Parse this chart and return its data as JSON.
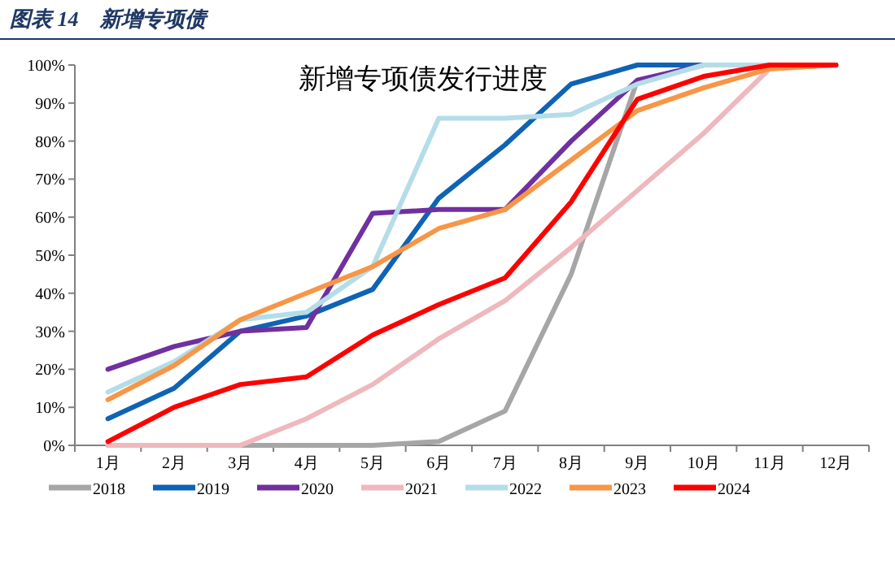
{
  "chart_data": {
    "type": "line",
    "title": "图表 14　新增专项债",
    "subtitle": "新增专项债发行进度",
    "categories": [
      "1月",
      "2月",
      "3月",
      "4月",
      "5月",
      "6月",
      "7月",
      "8月",
      "9月",
      "10月",
      "11月",
      "12月"
    ],
    "ylim": [
      0,
      100
    ],
    "yticks": [
      {
        "value": 0,
        "label": "0%"
      },
      {
        "value": 10,
        "label": "10%"
      },
      {
        "value": 20,
        "label": "20%"
      },
      {
        "value": 30,
        "label": "30%"
      },
      {
        "value": 40,
        "label": "40%"
      },
      {
        "value": 50,
        "label": "50%"
      },
      {
        "value": 60,
        "label": "60%"
      },
      {
        "value": 70,
        "label": "70%"
      },
      {
        "value": 80,
        "label": "80%"
      },
      {
        "value": 90,
        "label": "90%"
      },
      {
        "value": 100,
        "label": "100%"
      }
    ],
    "legend": "bottom",
    "grid": false,
    "marker": "none",
    "line_style": "solid",
    "series": [
      {
        "name": "2018",
        "color": "#a6a6a6",
        "values": [
          0,
          0,
          0,
          0,
          0,
          1,
          9,
          45,
          96,
          100,
          100,
          100
        ]
      },
      {
        "name": "2019",
        "color": "#0e63b4",
        "values": [
          7,
          15,
          30,
          34,
          41,
          65,
          79,
          95,
          100,
          100,
          100,
          100
        ]
      },
      {
        "name": "2020",
        "color": "#7030a0",
        "values": [
          20,
          26,
          30,
          31,
          61,
          62,
          62,
          80,
          96,
          100,
          100,
          100
        ]
      },
      {
        "name": "2021",
        "color": "#efb8bd",
        "values": [
          0,
          0,
          0,
          7,
          16,
          28,
          38,
          52,
          67,
          82,
          99,
          100
        ]
      },
      {
        "name": "2022",
        "color": "#b4dde8",
        "values": [
          14,
          22,
          33,
          35,
          47,
          86,
          86,
          87,
          95,
          100,
          100,
          100
        ]
      },
      {
        "name": "2023",
        "color": "#f79646",
        "values": [
          12,
          21,
          33,
          40,
          47,
          57,
          62,
          75,
          88,
          94,
          99,
          100
        ]
      },
      {
        "name": "2024",
        "color": "#ff0000",
        "values": [
          1,
          10,
          16,
          18,
          29,
          37,
          44,
          64,
          91,
          97,
          100,
          100
        ]
      }
    ]
  }
}
